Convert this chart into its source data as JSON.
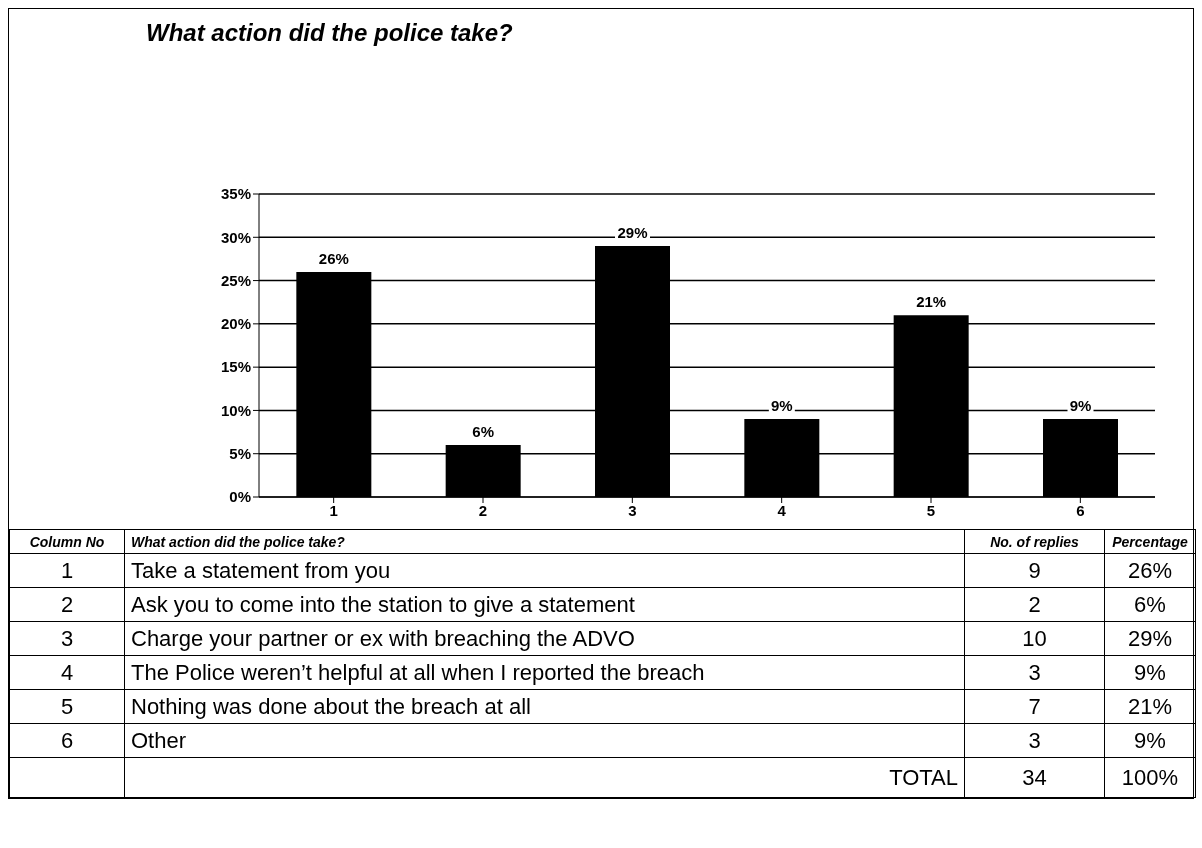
{
  "chart_data": {
    "type": "bar",
    "title": "What action did the police take?",
    "categories": [
      "1",
      "2",
      "3",
      "4",
      "5",
      "6"
    ],
    "values": [
      26,
      6,
      29,
      9,
      21,
      9
    ],
    "color": "#000000",
    "value_labels": [
      "26%",
      "6%",
      "29%",
      "9%",
      "21%",
      "9%"
    ],
    "ylim": [
      0,
      35
    ],
    "yticks": [
      {
        "value": 0,
        "label": "0%"
      },
      {
        "value": 5,
        "label": "5%"
      },
      {
        "value": 10,
        "label": "10%"
      },
      {
        "value": 15,
        "label": "15%"
      },
      {
        "value": 20,
        "label": "20%"
      },
      {
        "value": 25,
        "label": "25%"
      },
      {
        "value": 30,
        "label": "30%"
      },
      {
        "value": 35,
        "label": "35%"
      }
    ],
    "grid": "y",
    "annotations": [
      "Column No",
      "What action did the police take?",
      "No. of replies",
      "Percentage",
      "Take a statement from you",
      "Ask you to come into the station to give a statement",
      "Charge your partner or ex with breaching the ADVO",
      "The Police weren’t helpful at all when I reported the breach",
      "Nothing was done about the breach at all",
      "Other",
      "9",
      "2",
      "10",
      "3",
      "7",
      "3",
      "TOTAL",
      "34",
      "100%"
    ]
  }
}
